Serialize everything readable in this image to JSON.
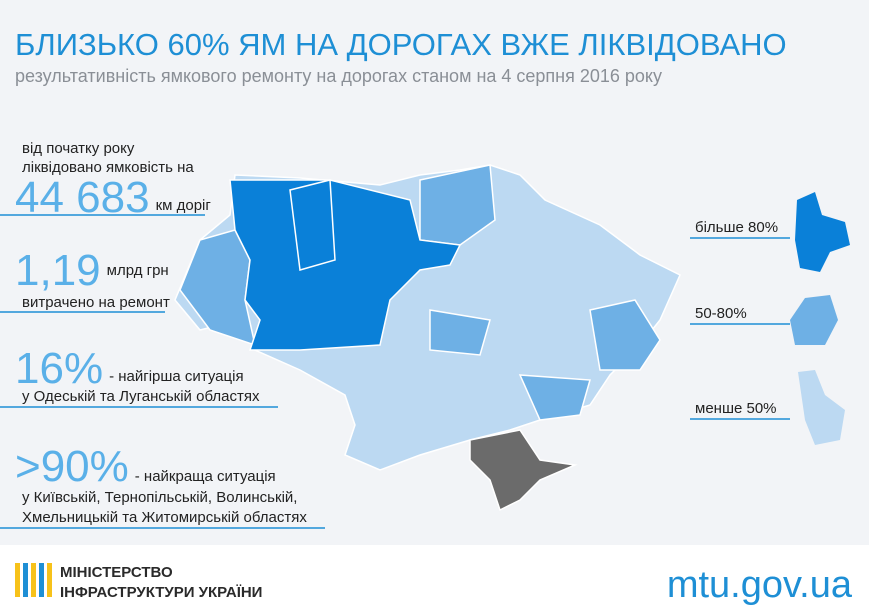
{
  "header": {
    "title": "БЛИЗЬКО 60% ЯМ НА ДОРОГАХ ВЖЕ ЛІКВІДОВАНО",
    "subtitle": "результативність ямкового ремонту на дорогах станом на 4 серпня 2016 року"
  },
  "stats": [
    {
      "intro": [
        "від початку року",
        "ліквідовано ямковість на"
      ],
      "big": "44 683",
      "unit": "км доріг"
    },
    {
      "big": "1,19",
      "unit": "млрд грн",
      "note": "витрачено на ремонт"
    },
    {
      "big": "16%",
      "unit": "- найгірша ситуація",
      "lines": [
        "у Одеській та Луганській областях"
      ]
    },
    {
      "big": ">90%",
      "unit": "- найкраща ситуація",
      "lines": [
        "у Київській, Тернопільській, Волинській,",
        "Хмельницькій та Житомирській областях"
      ]
    }
  ],
  "legend": [
    "більше 80%",
    "50-80%",
    "менше 50%"
  ],
  "footer": {
    "org": [
      "МІНІСТЕРСТВО",
      "ІНФРАСТРУКТУРИ УКРАЇНИ"
    ],
    "site": "mtu.gov.ua"
  }
}
